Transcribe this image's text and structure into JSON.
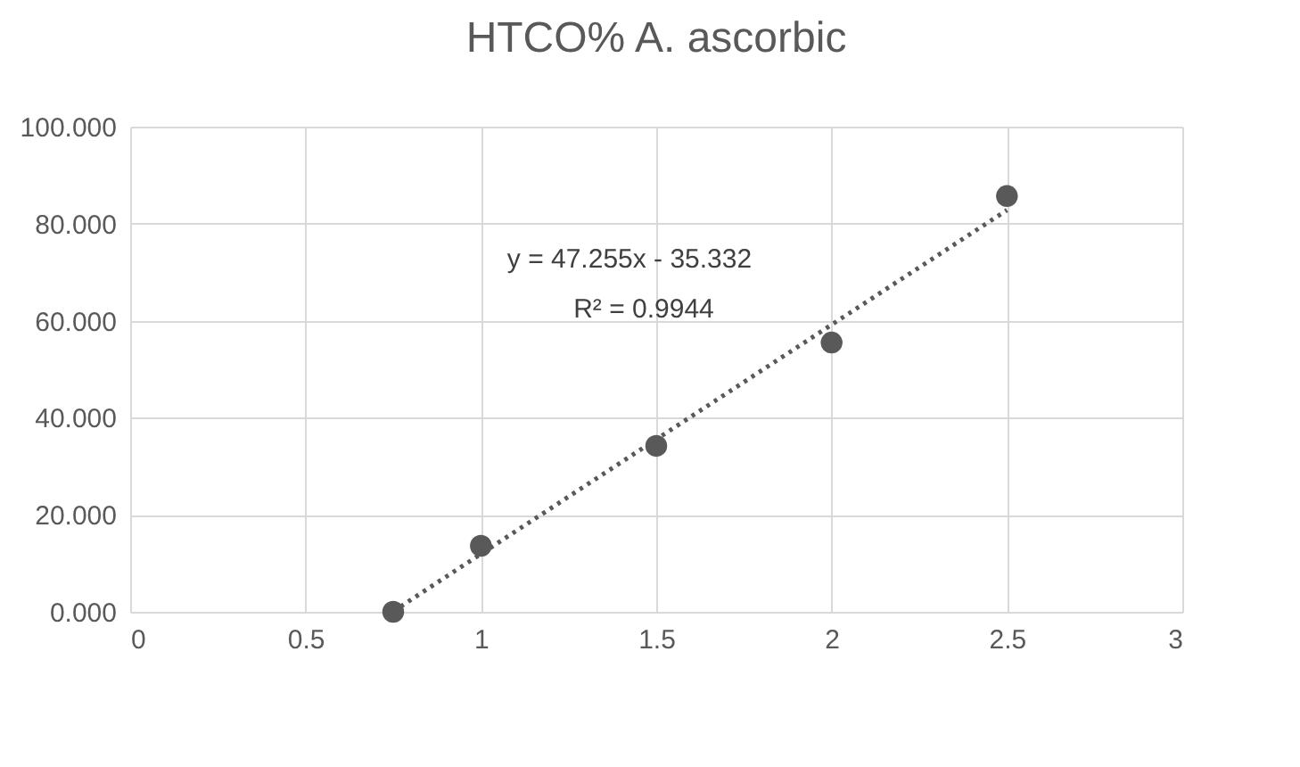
{
  "chart_data": {
    "type": "scatter",
    "title": "HTCO% A. ascorbic",
    "series": [
      {
        "type": "scatter",
        "color": "#595959",
        "x": [
          0.75,
          1,
          1.5,
          2,
          2.5
        ],
        "values": [
          0,
          13.6,
          34.2,
          55.5,
          85.7
        ],
        "marker": "circle"
      },
      {
        "type": "line",
        "color": "#595959",
        "x": [
          0.75,
          2.5
        ],
        "values": [
          0.1,
          82.8
        ],
        "line_style": "dotted",
        "marker": "none"
      }
    ],
    "annotations": [
      "y = 47.255x - 35.332",
      "R² = 0.9944"
    ],
    "xlim": [
      0,
      3
    ],
    "xticks": [
      0,
      0.5,
      1,
      1.5,
      2,
      2.5,
      3
    ],
    "ylim": [
      0,
      100
    ],
    "yticks": [
      {
        "value": 0,
        "label": "0.000"
      },
      {
        "value": 20,
        "label": "20.000"
      },
      {
        "value": 40,
        "label": "40.000"
      },
      {
        "value": 60,
        "label": "60.000"
      },
      {
        "value": 80,
        "label": "80.000"
      },
      {
        "value": 100,
        "label": "100.000"
      }
    ],
    "grid": true
  }
}
